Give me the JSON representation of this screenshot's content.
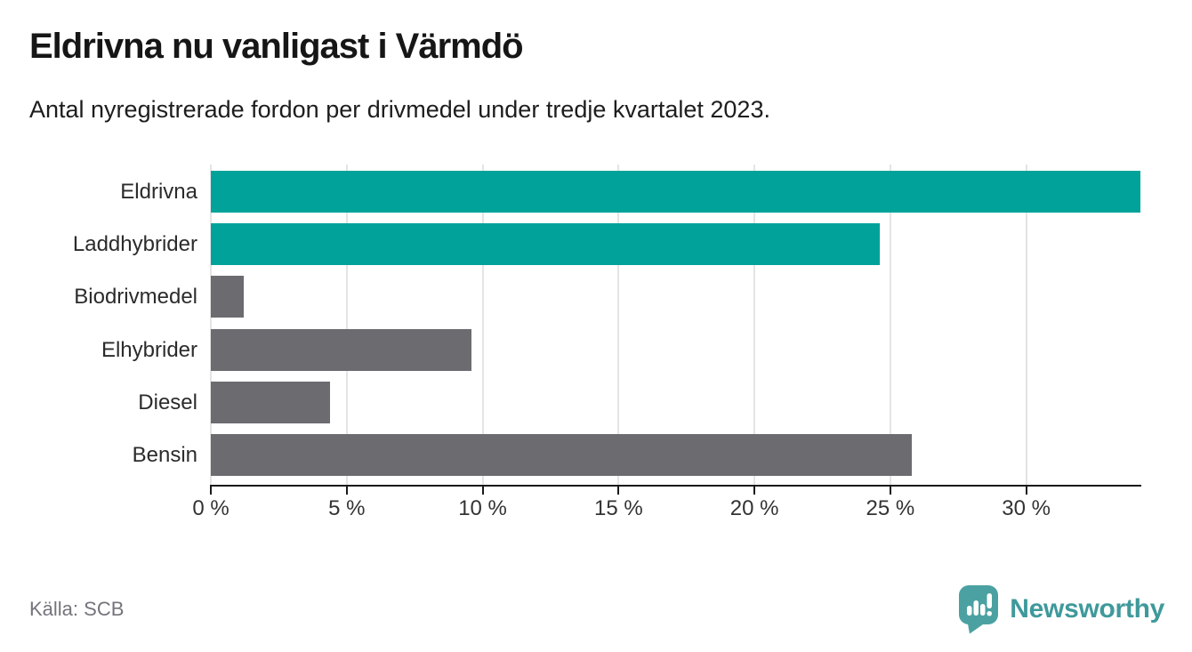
{
  "header": {
    "title": "Eldrivna nu vanligast i Värmdö",
    "subtitle": "Antal nyregistrerade fordon per drivmedel under tredje kvartalet 2023."
  },
  "footer": {
    "source": "Källa: SCB",
    "brand": "Newsworthy"
  },
  "icons": {
    "brand_logo": "bar-chart-speech-pin-icon"
  },
  "colors": {
    "highlight_bar": "#00a29a",
    "default_bar": "#6c6b70",
    "gridline": "#e4e4e4",
    "axis": "#1a1a1a",
    "logo_teal": "#4ba1a2",
    "wordmark_teal": "#3f999b"
  },
  "chart_data": {
    "type": "bar",
    "orientation": "horizontal",
    "title": "Eldrivna nu vanligast i Värmdö",
    "subtitle": "Antal nyregistrerade fordon per drivmedel under tredje kvartalet 2023.",
    "categories": [
      "Eldrivna",
      "Laddhybrider",
      "Biodrivmedel",
      "Elhybrider",
      "Diesel",
      "Bensin"
    ],
    "values": [
      34.2,
      24.6,
      1.2,
      9.6,
      4.4,
      25.8
    ],
    "unit": "%",
    "bar_colors": [
      "#00a29a",
      "#00a29a",
      "#6c6b70",
      "#6c6b70",
      "#6c6b70",
      "#6c6b70"
    ],
    "xlim": [
      0,
      34.2
    ],
    "x_ticks": [
      0,
      5,
      10,
      15,
      20,
      25,
      30
    ],
    "x_tick_labels": [
      "0 %",
      "5 %",
      "10 %",
      "15 %",
      "20 %",
      "25 %",
      "30 %"
    ],
    "grid": true,
    "legend": false,
    "source": "Källa: SCB"
  }
}
